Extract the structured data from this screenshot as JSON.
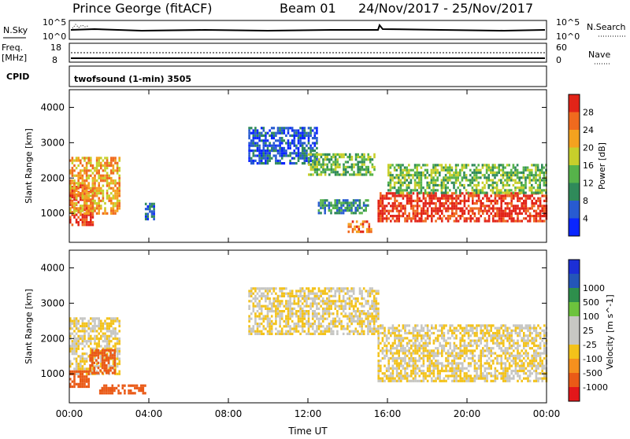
{
  "header": {
    "station": "Prince George (fitACF)",
    "beam": "Beam 01",
    "dates": "24/Nov/2017 - 25/Nov/2017"
  },
  "top_panels": {
    "nsky_label": "N.Sky",
    "nsky_ticks": [
      "10^5",
      "10^0"
    ],
    "nsearch_label": "N.Search",
    "nsearch_ticks": [
      "10^5",
      "10^0"
    ],
    "freq_label": "Freq.",
    "freq_unit": "[MHz]",
    "freq_ticks": [
      "18",
      "8"
    ],
    "nave_label": "Nave",
    "nave_ticks": [
      "60",
      "0"
    ],
    "cpid_label": "CPID",
    "cpid_text": "twofsound (1-min) 3505"
  },
  "colors": {
    "power": [
      "#0a26ff",
      "#285bd1",
      "#2f8a5a",
      "#56b34a",
      "#c7cf2b",
      "#f4a21f",
      "#f06a1e",
      "#e22418"
    ],
    "velocity": [
      "#e3171a",
      "#ea5a17",
      "#f5901e",
      "#f3c21a",
      "#c7c7c3",
      "#c7c7c3",
      "#6dc33d",
      "#2e8f4c",
      "#2456b8",
      "#1c2fd6"
    ],
    "gray": "#c6c6c3"
  },
  "chart_data": [
    {
      "type": "heatmap",
      "title": "",
      "xlabel": "",
      "ylabel": "Slant Range [km]",
      "x_ticks": [
        "00:00",
        "04:00",
        "08:00",
        "12:00",
        "16:00",
        "20:00",
        "00:00"
      ],
      "y_ticks": [
        "1000",
        "2000",
        "3000",
        "4000"
      ],
      "ylim": [
        180,
        4500
      ],
      "xlim_hours": [
        0,
        24
      ],
      "colorbar_label": "Power [dB]",
      "colorbar_ticks": [
        "4",
        "8",
        "12",
        "16",
        "20",
        "24",
        "28"
      ],
      "colorbar_range": [
        0,
        32
      ],
      "regions": [
        {
          "t0": 0.0,
          "t1": 1.2,
          "r0": 650,
          "r1": 1850,
          "level": 7
        },
        {
          "t0": 0.0,
          "t1": 2.5,
          "r0": 1000,
          "r1": 2600,
          "level": 5
        },
        {
          "t0": 3.8,
          "t1": 4.3,
          "r0": 850,
          "r1": 1300,
          "level": 1
        },
        {
          "t0": 9.0,
          "t1": 12.5,
          "r0": 2400,
          "r1": 3450,
          "level": 1
        },
        {
          "t0": 12.0,
          "t1": 15.3,
          "r0": 2100,
          "r1": 2700,
          "level": 3
        },
        {
          "t0": 12.5,
          "t1": 15.0,
          "r0": 1000,
          "r1": 1400,
          "level": 2
        },
        {
          "t0": 14.0,
          "t1": 15.2,
          "r0": 500,
          "r1": 800,
          "level": 6
        },
        {
          "t0": 15.5,
          "t1": 24.0,
          "r0": 800,
          "r1": 1600,
          "level": 7
        },
        {
          "t0": 16.0,
          "t1": 24.0,
          "r0": 1600,
          "r1": 2400,
          "level": 3
        }
      ]
    },
    {
      "type": "heatmap",
      "title": "",
      "xlabel": "Time UT",
      "ylabel": "Slant Range [km]",
      "x_ticks": [
        "00:00",
        "04:00",
        "08:00",
        "12:00",
        "16:00",
        "20:00",
        "00:00"
      ],
      "y_ticks": [
        "1000",
        "2000",
        "3000",
        "4000"
      ],
      "ylim": [
        180,
        4500
      ],
      "xlim_hours": [
        0,
        24
      ],
      "colorbar_label": "Velocity [m s^-1]",
      "colorbar_ticks": [
        "-1000",
        "-500",
        "-100",
        "-25",
        "25",
        "100",
        "500",
        "1000"
      ],
      "regions": [
        {
          "t0": 0.0,
          "t1": 2.5,
          "r0": 1000,
          "r1": 2600,
          "velocity": 0
        },
        {
          "t0": 0.0,
          "t1": 1.0,
          "r0": 650,
          "r1": 1100,
          "velocity": -150
        },
        {
          "t0": 1.0,
          "t1": 2.3,
          "r0": 1000,
          "r1": 1700,
          "velocity": -400
        },
        {
          "t0": 1.5,
          "t1": 3.8,
          "r0": 450,
          "r1": 700,
          "velocity": -200
        },
        {
          "t0": 9.0,
          "t1": 15.5,
          "r0": 2100,
          "r1": 3450,
          "velocity": 0
        },
        {
          "t0": 15.5,
          "t1": 24.0,
          "r0": 800,
          "r1": 2400,
          "velocity": 0
        }
      ]
    }
  ]
}
